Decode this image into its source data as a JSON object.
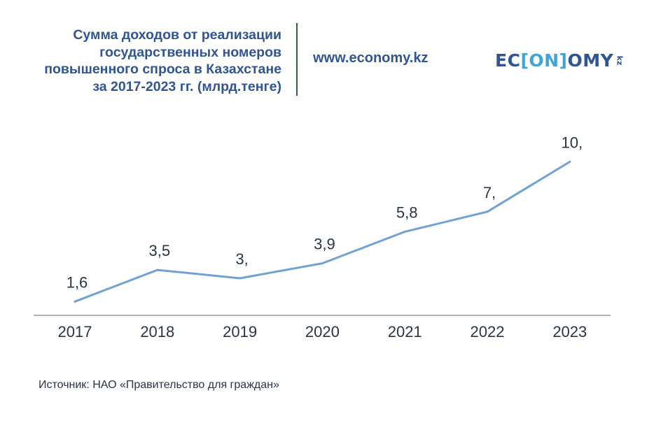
{
  "header": {
    "title_lines": [
      "Сумма доходов от реализации",
      "государственных номеров",
      "повышенного спроса в Казахстане",
      "за 2017-2023 гг. (млрд.тенге)"
    ],
    "website": "www.economy.kz",
    "logo": {
      "part1": "EC",
      "part2": "[ON]",
      "part3": "OMY",
      "suffix": "kz"
    }
  },
  "source": "Источник: НАО «Правительство для граждан»",
  "colors": {
    "title": "#2f5597",
    "line": "#6fa3d3",
    "axis": "#9a9a9a",
    "text": "#2b3445",
    "logo_accent": "#3ba5dc"
  },
  "chart_data": {
    "type": "line",
    "title": "Сумма доходов от реализации государственных номеров повышенного спроса в Казахстане за 2017-2023 гг. (млрд.тенге)",
    "categories": [
      "2017",
      "2018",
      "2019",
      "2020",
      "2021",
      "2022",
      "2023"
    ],
    "values": [
      1.6,
      3.5,
      3.0,
      3.9,
      5.8,
      7.0,
      10.0
    ],
    "data_labels": [
      "1,6",
      "3,5",
      "3,",
      "3,9",
      "5,8",
      "7,",
      "10,"
    ],
    "xlabel": "",
    "ylabel": "",
    "ylim": [
      0,
      11.5
    ],
    "grid": false,
    "legend": "none"
  }
}
